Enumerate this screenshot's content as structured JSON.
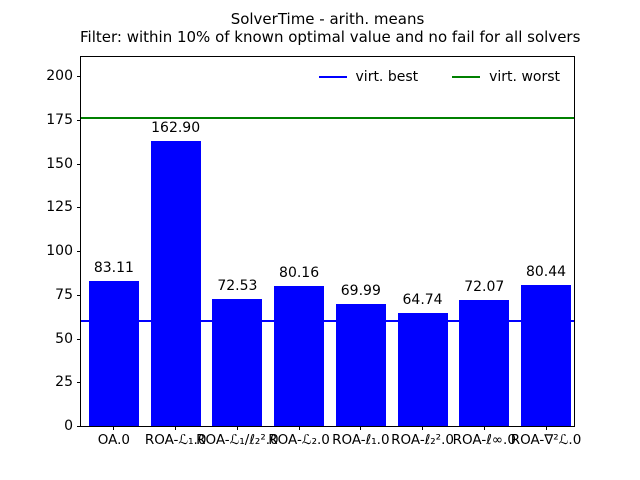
{
  "chart_data": {
    "type": "bar",
    "title": "SolverTime - arith. means",
    "subtitle": "Filter: within 10% of known optimal value and no fail for all solvers",
    "categories": [
      "OA.0",
      "ROA-ℒ₁.0",
      "ROA-ℒ₁/ℓ₂².0",
      "ROA-ℒ₂.0",
      "ROA-ℓ₁.0",
      "ROA-ℓ₂².0",
      "ROA-ℓ∞.0",
      "ROA-∇²ℒ.0"
    ],
    "values": [
      83.11,
      162.9,
      72.53,
      80.16,
      69.99,
      64.74,
      72.07,
      80.44
    ],
    "bar_color": "#0000ff",
    "value_label_decimals": 2,
    "xlabel": "",
    "ylabel": "",
    "ylim": [
      0,
      211
    ],
    "yticks": [
      0,
      25,
      50,
      75,
      100,
      125,
      150,
      175,
      200
    ],
    "grid": false,
    "legend_position": "upper right, inside plot, 2 columns, no frame",
    "legend": [
      {
        "label": "virt. best",
        "color": "#0000ff",
        "y": 60.0
      },
      {
        "label": "virt. worst",
        "color": "#008000",
        "y": 176.2
      }
    ],
    "axis_color": "#000000",
    "background_color": "#ffffff"
  }
}
